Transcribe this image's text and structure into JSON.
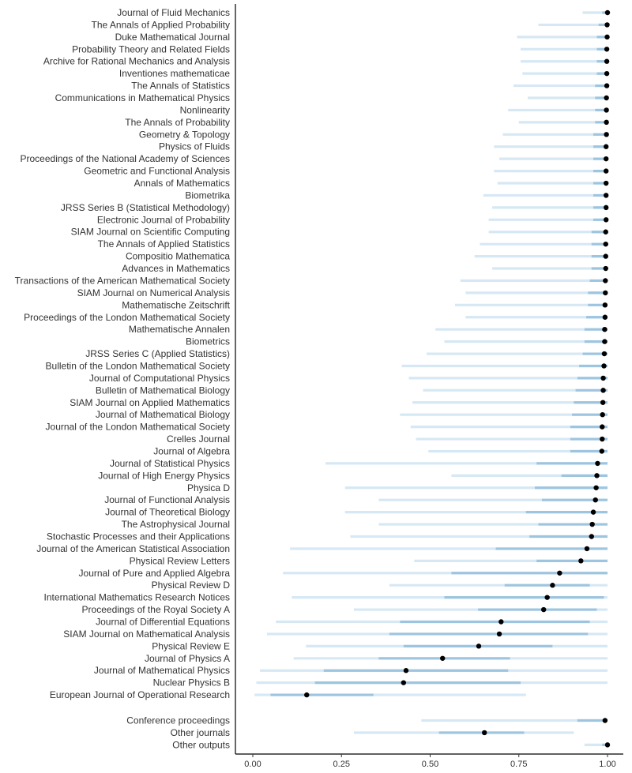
{
  "chart_data": {
    "type": "interval",
    "title": "",
    "xlabel": "",
    "ylabel": "",
    "xlim": [
      0,
      1
    ],
    "x_ticks": [
      "0.00",
      "0.25",
      "0.50",
      "0.75",
      "1.00"
    ],
    "x_tick_values": [
      0,
      0.25,
      0.5,
      0.75,
      1
    ],
    "grid": false,
    "colors": {
      "outer": "#d6e8f4",
      "inner": "#9ec5e0",
      "point": "#000000",
      "axis": "#000000",
      "text": "#333333"
    },
    "groups": [
      {
        "name": "journals",
        "items": [
          {
            "label": "Journal of Fluid Mechanics",
            "point": 1.0,
            "outer": [
              0.93,
              1.0
            ],
            "inner": [
              0.985,
              1.0
            ]
          },
          {
            "label": "The Annals of Applied Probability",
            "point": 0.999,
            "outer": [
              0.805,
              1.0
            ],
            "inner": [
              0.975,
              1.0
            ]
          },
          {
            "label": "Duke Mathematical Journal",
            "point": 0.999,
            "outer": [
              0.745,
              1.0
            ],
            "inner": [
              0.97,
              1.0
            ]
          },
          {
            "label": "Probability Theory and Related Fields",
            "point": 0.998,
            "outer": [
              0.755,
              1.0
            ],
            "inner": [
              0.97,
              1.0
            ]
          },
          {
            "label": "Archive for Rational Mechanics and Analysis",
            "point": 0.998,
            "outer": [
              0.755,
              1.0
            ],
            "inner": [
              0.97,
              1.0
            ]
          },
          {
            "label": "Inventiones mathematicae",
            "point": 0.998,
            "outer": [
              0.76,
              1.0
            ],
            "inner": [
              0.97,
              1.0
            ]
          },
          {
            "label": "The Annals of Statistics",
            "point": 0.998,
            "outer": [
              0.735,
              1.0
            ],
            "inner": [
              0.965,
              1.0
            ]
          },
          {
            "label": "Communications in Mathematical Physics",
            "point": 0.997,
            "outer": [
              0.775,
              1.0
            ],
            "inner": [
              0.965,
              1.0
            ]
          },
          {
            "label": "Nonlinearity",
            "point": 0.997,
            "outer": [
              0.72,
              1.0
            ],
            "inner": [
              0.965,
              1.0
            ]
          },
          {
            "label": "The Annals of Probability",
            "point": 0.997,
            "outer": [
              0.75,
              1.0
            ],
            "inner": [
              0.965,
              1.0
            ]
          },
          {
            "label": "Geometry & Topology",
            "point": 0.997,
            "outer": [
              0.705,
              1.0
            ],
            "inner": [
              0.96,
              1.0
            ]
          },
          {
            "label": "Physics of Fluids",
            "point": 0.996,
            "outer": [
              0.68,
              1.0
            ],
            "inner": [
              0.96,
              1.0
            ]
          },
          {
            "label": "Proceedings of the National Academy of Sciences",
            "point": 0.996,
            "outer": [
              0.695,
              1.0
            ],
            "inner": [
              0.96,
              1.0
            ]
          },
          {
            "label": "Geometric and Functional Analysis",
            "point": 0.996,
            "outer": [
              0.68,
              1.0
            ],
            "inner": [
              0.96,
              1.0
            ]
          },
          {
            "label": "Annals of Mathematics",
            "point": 0.996,
            "outer": [
              0.69,
              1.0
            ],
            "inner": [
              0.96,
              1.0
            ]
          },
          {
            "label": "Biometrika",
            "point": 0.996,
            "outer": [
              0.65,
              1.0
            ],
            "inner": [
              0.96,
              1.0
            ]
          },
          {
            "label": "JRSS Series B (Statistical Methodology)",
            "point": 0.996,
            "outer": [
              0.675,
              1.0
            ],
            "inner": [
              0.96,
              1.0
            ]
          },
          {
            "label": "Electronic Journal of Probability",
            "point": 0.996,
            "outer": [
              0.665,
              1.0
            ],
            "inner": [
              0.96,
              1.0
            ]
          },
          {
            "label": "SIAM Journal on Scientific Computing",
            "point": 0.995,
            "outer": [
              0.665,
              1.0
            ],
            "inner": [
              0.955,
              1.0
            ]
          },
          {
            "label": "The Annals of Applied Statistics",
            "point": 0.995,
            "outer": [
              0.64,
              1.0
            ],
            "inner": [
              0.955,
              1.0
            ]
          },
          {
            "label": "Compositio Mathematica",
            "point": 0.995,
            "outer": [
              0.625,
              1.0
            ],
            "inner": [
              0.955,
              1.0
            ]
          },
          {
            "label": "Advances in Mathematics",
            "point": 0.995,
            "outer": [
              0.675,
              1.0
            ],
            "inner": [
              0.955,
              1.0
            ]
          },
          {
            "label": "Transactions of the American Mathematical Society",
            "point": 0.994,
            "outer": [
              0.585,
              1.0
            ],
            "inner": [
              0.95,
              1.0
            ]
          },
          {
            "label": "SIAM Journal on Numerical Analysis",
            "point": 0.994,
            "outer": [
              0.6,
              1.0
            ],
            "inner": [
              0.945,
              1.0
            ]
          },
          {
            "label": "Mathematische Zeitschrift",
            "point": 0.993,
            "outer": [
              0.57,
              1.0
            ],
            "inner": [
              0.945,
              1.0
            ]
          },
          {
            "label": "Proceedings of the London Mathematical Society",
            "point": 0.993,
            "outer": [
              0.6,
              1.0
            ],
            "inner": [
              0.94,
              1.0
            ]
          },
          {
            "label": "Mathematische Annalen",
            "point": 0.992,
            "outer": [
              0.515,
              1.0
            ],
            "inner": [
              0.935,
              1.0
            ]
          },
          {
            "label": "Biometrics",
            "point": 0.992,
            "outer": [
              0.54,
              1.0
            ],
            "inner": [
              0.935,
              1.0
            ]
          },
          {
            "label": "JRSS Series C (Applied Statistics)",
            "point": 0.991,
            "outer": [
              0.49,
              1.0
            ],
            "inner": [
              0.93,
              1.0
            ]
          },
          {
            "label": "Bulletin of the London Mathematical Society",
            "point": 0.99,
            "outer": [
              0.42,
              1.0
            ],
            "inner": [
              0.92,
              1.0
            ]
          },
          {
            "label": "Journal of Computational Physics",
            "point": 0.988,
            "outer": [
              0.44,
              1.0
            ],
            "inner": [
              0.915,
              1.0
            ]
          },
          {
            "label": "Bulletin of Mathematical Biology",
            "point": 0.988,
            "outer": [
              0.48,
              1.0
            ],
            "inner": [
              0.91,
              1.0
            ]
          },
          {
            "label": "SIAM Journal on Applied Mathematics",
            "point": 0.987,
            "outer": [
              0.45,
              1.0
            ],
            "inner": [
              0.905,
              1.0
            ]
          },
          {
            "label": "Journal of Mathematical Biology",
            "point": 0.986,
            "outer": [
              0.415,
              1.0
            ],
            "inner": [
              0.9,
              1.0
            ]
          },
          {
            "label": "Journal of the London Mathematical Society",
            "point": 0.985,
            "outer": [
              0.445,
              1.0
            ],
            "inner": [
              0.895,
              1.0
            ]
          },
          {
            "label": "Crelles Journal",
            "point": 0.985,
            "outer": [
              0.46,
              1.0
            ],
            "inner": [
              0.895,
              1.0
            ]
          },
          {
            "label": "Journal of Algebra",
            "point": 0.984,
            "outer": [
              0.495,
              1.0
            ],
            "inner": [
              0.895,
              1.0
            ]
          },
          {
            "label": "Journal of Statistical Physics",
            "point": 0.972,
            "outer": [
              0.205,
              1.0
            ],
            "inner": [
              0.8,
              1.0
            ]
          },
          {
            "label": "Journal of High Energy Physics",
            "point": 0.97,
            "outer": [
              0.56,
              1.0
            ],
            "inner": [
              0.87,
              1.0
            ]
          },
          {
            "label": "Physica D",
            "point": 0.968,
            "outer": [
              0.26,
              1.0
            ],
            "inner": [
              0.795,
              1.0
            ]
          },
          {
            "label": "Journal of Functional Analysis",
            "point": 0.966,
            "outer": [
              0.355,
              1.0
            ],
            "inner": [
              0.815,
              1.0
            ]
          },
          {
            "label": "Journal of Theoretical Biology",
            "point": 0.96,
            "outer": [
              0.26,
              1.0
            ],
            "inner": [
              0.77,
              1.0
            ]
          },
          {
            "label": "The Astrophysical Journal",
            "point": 0.957,
            "outer": [
              0.355,
              1.0
            ],
            "inner": [
              0.805,
              1.0
            ]
          },
          {
            "label": "Stochastic Processes and their Applications",
            "point": 0.955,
            "outer": [
              0.275,
              1.0
            ],
            "inner": [
              0.78,
              1.0
            ]
          },
          {
            "label": "Journal of the American Statistical Association",
            "point": 0.942,
            "outer": [
              0.105,
              1.0
            ],
            "inner": [
              0.685,
              1.0
            ]
          },
          {
            "label": "Physical Review Letters",
            "point": 0.925,
            "outer": [
              0.455,
              1.0
            ],
            "inner": [
              0.8,
              1.0
            ]
          },
          {
            "label": "Journal of Pure and Applied Algebra",
            "point": 0.865,
            "outer": [
              0.085,
              1.0
            ],
            "inner": [
              0.56,
              1.0
            ]
          },
          {
            "label": "Physical Review D",
            "point": 0.845,
            "outer": [
              0.385,
              1.0
            ],
            "inner": [
              0.71,
              0.95
            ]
          },
          {
            "label": "International Mathematics Research Notices",
            "point": 0.83,
            "outer": [
              0.11,
              1.0
            ],
            "inner": [
              0.54,
              0.99
            ]
          },
          {
            "label": "Proceedings of the Royal Society A",
            "point": 0.82,
            "outer": [
              0.285,
              1.0
            ],
            "inner": [
              0.635,
              0.97
            ]
          },
          {
            "label": "Journal of Differential Equations",
            "point": 0.7,
            "outer": [
              0.065,
              1.0
            ],
            "inner": [
              0.415,
              0.95
            ]
          },
          {
            "label": "SIAM Journal on Mathematical Analysis",
            "point": 0.695,
            "outer": [
              0.04,
              1.0
            ],
            "inner": [
              0.385,
              0.945
            ]
          },
          {
            "label": "Physical Review E",
            "point": 0.637,
            "outer": [
              0.15,
              1.0
            ],
            "inner": [
              0.425,
              0.845
            ]
          },
          {
            "label": "Journal of Physics A",
            "point": 0.535,
            "outer": [
              0.115,
              1.0
            ],
            "inner": [
              0.355,
              0.725
            ]
          },
          {
            "label": "Journal of Mathematical Physics",
            "point": 0.432,
            "outer": [
              0.02,
              1.0
            ],
            "inner": [
              0.2,
              0.72
            ]
          },
          {
            "label": "Nuclear Physics B",
            "point": 0.425,
            "outer": [
              0.01,
              1.0
            ],
            "inner": [
              0.175,
              0.755
            ]
          },
          {
            "label": "European Journal of Operational Research",
            "point": 0.152,
            "outer": [
              0.005,
              0.77
            ],
            "inner": [
              0.05,
              0.34
            ]
          }
        ]
      },
      {
        "name": "other",
        "items": [
          {
            "label": "Conference proceedings",
            "point": 0.993,
            "outer": [
              0.475,
              1.0
            ],
            "inner": [
              0.915,
              1.0
            ]
          },
          {
            "label": "Other journals",
            "point": 0.653,
            "outer": [
              0.285,
              0.905
            ],
            "inner": [
              0.525,
              0.765
            ]
          },
          {
            "label": "Other outputs",
            "point": 1.0,
            "outer": [
              0.935,
              1.0
            ],
            "inner": [
              0.985,
              1.0
            ]
          }
        ]
      }
    ]
  }
}
